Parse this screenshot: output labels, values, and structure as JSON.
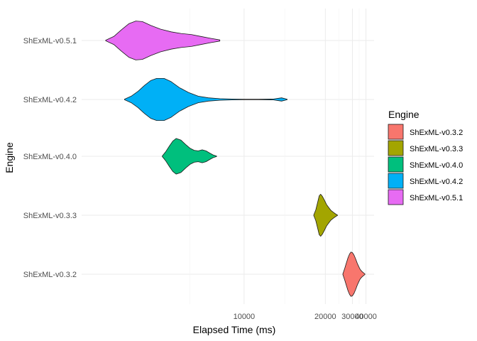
{
  "chart_data": {
    "type": "violin",
    "xlabel": "Elapsed Time (ms)",
    "ylabel": "Engine",
    "x_scale": "reciprocal",
    "x_ticks": [
      10000,
      20000,
      30000,
      40000
    ],
    "x_tick_labels": [
      "10000",
      "20000",
      "30000",
      "40000"
    ],
    "grid": true,
    "legend": {
      "title": "Engine",
      "position": "right",
      "entries": [
        {
          "label": "ShExML-v0.3.2",
          "color": "#F8766D"
        },
        {
          "label": "ShExML-v0.3.3",
          "color": "#A3A500"
        },
        {
          "label": "ShExML-v0.4.0",
          "color": "#00BF7D"
        },
        {
          "label": "ShExML-v0.4.2",
          "color": "#00B0F6"
        },
        {
          "label": "ShExML-v0.5.1",
          "color": "#E76BF3"
        }
      ]
    },
    "categories": [
      "ShExML-v0.3.2",
      "ShExML-v0.3.3",
      "ShExML-v0.4.0",
      "ShExML-v0.4.2",
      "ShExML-v0.5.1"
    ],
    "series": [
      {
        "name": "ShExML-v0.3.2",
        "color": "#F8766D",
        "profile": [
          [
            25500,
            0.01
          ],
          [
            26300,
            0.22
          ],
          [
            27000,
            0.42
          ],
          [
            27800,
            0.62
          ],
          [
            28500,
            0.75
          ],
          [
            29200,
            0.82
          ],
          [
            30000,
            0.8
          ],
          [
            31000,
            0.7
          ],
          [
            32000,
            0.55
          ],
          [
            33000,
            0.4
          ],
          [
            34000,
            0.28
          ],
          [
            35000,
            0.18
          ],
          [
            36000,
            0.12
          ],
          [
            37500,
            0.06
          ],
          [
            39000,
            0.01
          ]
        ]
      },
      {
        "name": "ShExML-v0.3.3",
        "color": "#A3A500",
        "profile": [
          [
            17500,
            0.01
          ],
          [
            17900,
            0.2
          ],
          [
            18300,
            0.5
          ],
          [
            18600,
            0.72
          ],
          [
            18900,
            0.78
          ],
          [
            19300,
            0.7
          ],
          [
            19800,
            0.55
          ],
          [
            20300,
            0.4
          ],
          [
            20900,
            0.28
          ],
          [
            21500,
            0.18
          ],
          [
            22300,
            0.1
          ],
          [
            23000,
            0.04
          ],
          [
            23500,
            0.01
          ]
        ]
      },
      {
        "name": "ShExML-v0.4.0",
        "color": "#00BF7D",
        "profile": [
          [
            6650,
            0.01
          ],
          [
            6750,
            0.18
          ],
          [
            6850,
            0.38
          ],
          [
            6950,
            0.56
          ],
          [
            7050,
            0.66
          ],
          [
            7200,
            0.6
          ],
          [
            7350,
            0.44
          ],
          [
            7500,
            0.3
          ],
          [
            7650,
            0.22
          ],
          [
            7800,
            0.2
          ],
          [
            7950,
            0.24
          ],
          [
            8100,
            0.2
          ],
          [
            8250,
            0.12
          ],
          [
            8400,
            0.05
          ],
          [
            8550,
            0.01
          ]
        ]
      },
      {
        "name": "ShExML-v0.4.2",
        "color": "#00B0F6",
        "profile": [
          [
            5760,
            0.01
          ],
          [
            5900,
            0.12
          ],
          [
            6050,
            0.3
          ],
          [
            6200,
            0.52
          ],
          [
            6350,
            0.7
          ],
          [
            6500,
            0.78
          ],
          [
            6700,
            0.78
          ],
          [
            6900,
            0.66
          ],
          [
            7150,
            0.44
          ],
          [
            7450,
            0.26
          ],
          [
            7800,
            0.12
          ],
          [
            8200,
            0.06
          ],
          [
            8700,
            0.03
          ],
          [
            9300,
            0.015
          ],
          [
            10000,
            0.01
          ],
          [
            11000,
            0.01
          ],
          [
            12200,
            0.015
          ],
          [
            13000,
            0.06
          ],
          [
            13600,
            0.01
          ]
        ]
      },
      {
        "name": "ShExML-v0.5.1",
        "color": "#E76BF3",
        "profile": [
          [
            5400,
            0.01
          ],
          [
            5550,
            0.15
          ],
          [
            5700,
            0.4
          ],
          [
            5850,
            0.62
          ],
          [
            6000,
            0.72
          ],
          [
            6150,
            0.7
          ],
          [
            6350,
            0.56
          ],
          [
            6600,
            0.42
          ],
          [
            6900,
            0.32
          ],
          [
            7200,
            0.26
          ],
          [
            7550,
            0.22
          ],
          [
            7900,
            0.15
          ],
          [
            8300,
            0.08
          ],
          [
            8700,
            0.02
          ]
        ]
      }
    ]
  }
}
